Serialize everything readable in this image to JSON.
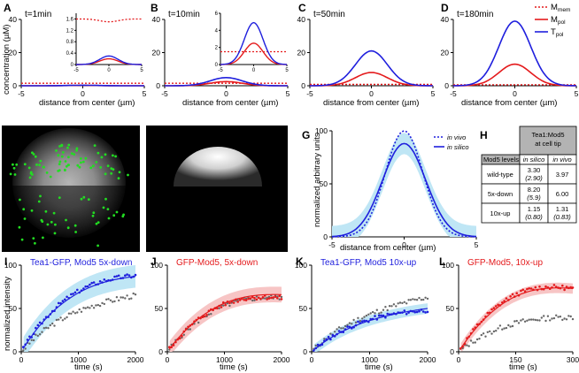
{
  "colors": {
    "red": "#e41a1c",
    "blue": "#1f1fdd",
    "lightblue": "#bfe6f5",
    "pink": "#f7c5c5",
    "gray": "#666666",
    "green": "#22dd22"
  },
  "labels": {
    "A": "A",
    "B": "B",
    "C": "C",
    "D": "D",
    "E": "E",
    "F": "F",
    "G": "G",
    "H": "H",
    "I": "I",
    "J": "J",
    "K": "K",
    "L": "L"
  },
  "top_row": {
    "ylabel": "concentration (µM)",
    "xlabel": "distance from center (µm)",
    "legend": [
      {
        "text": "M",
        "sub": "mem",
        "style": "dotted",
        "color": "#e41a1c"
      },
      {
        "text": "M",
        "sub": "pol",
        "style": "solid",
        "color": "#e41a1c"
      },
      {
        "text": "T",
        "sub": "pol",
        "style": "solid",
        "color": "#1f1fdd"
      }
    ],
    "insets": {
      "A": {
        "yticks": [
          "0",
          "0.4",
          "0.8",
          "1.2",
          "1.6"
        ],
        "xticks": [
          "-5",
          "0",
          "5"
        ]
      },
      "B": {
        "yticks": [
          "0",
          "2",
          "4",
          "6"
        ],
        "xticks": [
          "-5",
          "0",
          "5"
        ]
      }
    }
  },
  "panel_g": {
    "ylabel": "normalized arbitrary units",
    "xlabel": "distance from center (µm)",
    "legend": [
      "in vivo",
      "in silico"
    ]
  },
  "panel_h": {
    "header": "Tea1:Mod5 at cell tip",
    "col_label": "Mod5 levels",
    "col_insilico": "in silico",
    "col_invivo": "in vivo",
    "rows": [
      {
        "level": "wild-type",
        "silico": "3.30",
        "silico2": "(2.90)",
        "vivo": "3.97",
        "vivo2": ""
      },
      {
        "level": "5x-down",
        "silico": "8.20",
        "silico2": "(5.9)",
        "vivo": "6.00",
        "vivo2": ""
      },
      {
        "level": "10x-up",
        "silico": "1.15",
        "silico2": "(0.80)",
        "vivo": "1.31",
        "vivo2": "(0.83)"
      }
    ]
  },
  "bottom_row": {
    "ylabel": "normalized intensity",
    "xlabel": "time (s)"
  },
  "chart_data": [
    {
      "panel": "A",
      "type": "line",
      "title": "t=1min",
      "xlabel": "distance from center (µm)",
      "ylabel": "concentration (µM)",
      "xlim": [
        -5,
        5
      ],
      "ylim": [
        0,
        40
      ],
      "xticks": [
        -5,
        0,
        5
      ],
      "yticks": [
        0,
        20,
        40
      ],
      "series": [
        {
          "name": "Mmem",
          "x": [
            -5,
            0,
            5
          ],
          "values": [
            1.6,
            1.6,
            1.6
          ]
        },
        {
          "name": "Mpol",
          "x": [
            -5,
            0,
            5
          ],
          "values": [
            0,
            0.2,
            0
          ]
        },
        {
          "name": "Tpol",
          "x": [
            -5,
            0,
            5
          ],
          "values": [
            0,
            0.3,
            0
          ]
        }
      ]
    },
    {
      "panel": "B",
      "type": "line",
      "title": "t=10min",
      "xlabel": "distance from center (µm)",
      "ylabel": "",
      "xlim": [
        -5,
        5
      ],
      "ylim": [
        0,
        40
      ],
      "xticks": [
        -5,
        0,
        5
      ],
      "yticks": [
        0,
        20,
        40
      ],
      "series": [
        {
          "name": "Mmem",
          "x": [
            -5,
            0,
            5
          ],
          "values": [
            1.5,
            1.5,
            1.5
          ]
        },
        {
          "name": "Mpol",
          "x": [
            -5,
            0,
            5
          ],
          "values": [
            0,
            2.5,
            0
          ]
        },
        {
          "name": "Tpol",
          "x": [
            -5,
            0,
            5
          ],
          "values": [
            0,
            4.9,
            0
          ]
        }
      ]
    },
    {
      "panel": "C",
      "type": "line",
      "title": "t=50min",
      "xlabel": "distance from center (µm)",
      "ylabel": "",
      "xlim": [
        -5,
        5
      ],
      "ylim": [
        0,
        40
      ],
      "xticks": [
        -5,
        0,
        5
      ],
      "yticks": [
        0,
        20,
        40
      ],
      "series": [
        {
          "name": "Mmem",
          "x": [
            -5,
            0,
            5
          ],
          "values": [
            0.8,
            0.8,
            0.8
          ]
        },
        {
          "name": "Mpol",
          "x": [
            -5,
            0,
            5
          ],
          "values": [
            0,
            8,
            0
          ]
        },
        {
          "name": "Tpol",
          "x": [
            -5,
            0,
            5
          ],
          "values": [
            0,
            21,
            0
          ]
        }
      ]
    },
    {
      "panel": "D",
      "type": "line",
      "title": "t=180min",
      "xlabel": "distance from center (µm)",
      "ylabel": "",
      "xlim": [
        -5,
        5
      ],
      "ylim": [
        0,
        40
      ],
      "xticks": [
        -5,
        0,
        5
      ],
      "yticks": [
        0,
        20,
        40
      ],
      "series": [
        {
          "name": "Mmem",
          "x": [
            -5,
            0,
            5
          ],
          "values": [
            0.6,
            0.6,
            0.6
          ]
        },
        {
          "name": "Mpol",
          "x": [
            -5,
            0,
            5
          ],
          "values": [
            0,
            13,
            0
          ]
        },
        {
          "name": "Tpol",
          "x": [
            -5,
            0,
            5
          ],
          "values": [
            0,
            39,
            0
          ]
        }
      ]
    },
    {
      "panel": "G",
      "type": "line",
      "title": "",
      "xlabel": "distance from center (µm)",
      "ylabel": "normalized arbitrary units",
      "xlim": [
        -5,
        5
      ],
      "ylim": [
        0,
        100
      ],
      "xticks": [
        -5,
        0,
        5
      ],
      "yticks": [
        0,
        50,
        100
      ],
      "series": [
        {
          "name": "in vivo",
          "x": [
            -5,
            0,
            5
          ],
          "values": [
            0,
            100,
            0
          ]
        },
        {
          "name": "in silico",
          "x": [
            -5,
            0,
            5
          ],
          "values": [
            0,
            88,
            0
          ]
        }
      ]
    },
    {
      "panel": "I",
      "type": "scatter",
      "title": "Tea1-GFP, Mod5 5x-down",
      "xlabel": "time (s)",
      "ylabel": "normalized intensity",
      "xlim": [
        0,
        2000
      ],
      "ylim": [
        0,
        100
      ],
      "xticks": [
        0,
        1000,
        2000
      ],
      "yticks": [
        0,
        50,
        100
      ],
      "series": [
        {
          "name": "model",
          "x": [
            0,
            1000,
            2000
          ],
          "values": [
            0,
            68,
            87
          ]
        },
        {
          "name": "5x-down data",
          "x": [
            0,
            1000,
            2000
          ],
          "values": [
            0,
            70,
            88
          ]
        },
        {
          "name": "wild-type",
          "x": [
            0,
            1000,
            2000
          ],
          "values": [
            0,
            47,
            65
          ]
        }
      ]
    },
    {
      "panel": "J",
      "type": "scatter",
      "title": "GFP-Mod5, 5x-down",
      "xlabel": "time (s)",
      "ylabel": "",
      "xlim": [
        0,
        2000
      ],
      "ylim": [
        0,
        100
      ],
      "xticks": [
        0,
        1000,
        2000
      ],
      "yticks": [
        0,
        50,
        100
      ],
      "series": [
        {
          "name": "model",
          "x": [
            0,
            1000,
            2000
          ],
          "values": [
            0,
            56,
            66
          ]
        },
        {
          "name": "5x-down data",
          "x": [
            0,
            1000,
            2000
          ],
          "values": [
            0,
            55,
            62
          ]
        },
        {
          "name": "wild-type",
          "x": [
            0,
            1000,
            2000
          ],
          "values": [
            0,
            53,
            63
          ]
        }
      ]
    },
    {
      "panel": "K",
      "type": "scatter",
      "title": "Tea1-GFP, Mod5 10x-up",
      "xlabel": "time (s)",
      "ylabel": "",
      "xlim": [
        0,
        2000
      ],
      "ylim": [
        0,
        100
      ],
      "xticks": [
        0,
        1000,
        2000
      ],
      "yticks": [
        0,
        50,
        100
      ],
      "series": [
        {
          "name": "model",
          "x": [
            0,
            1000,
            2000
          ],
          "values": [
            0,
            36,
            50
          ]
        },
        {
          "name": "10x-up data",
          "x": [
            0,
            1000,
            2000
          ],
          "values": [
            0,
            37,
            48
          ]
        },
        {
          "name": "wild-type",
          "x": [
            0,
            1000,
            2000
          ],
          "values": [
            0,
            43,
            63
          ]
        }
      ]
    },
    {
      "panel": "L",
      "type": "scatter",
      "title": "GFP-Mod5, 10x-up",
      "xlabel": "time (s)",
      "ylabel": "",
      "xlim": [
        0,
        300
      ],
      "ylim": [
        0,
        100
      ],
      "xticks": [
        0,
        150,
        300
      ],
      "yticks": [
        0,
        50,
        100
      ],
      "series": [
        {
          "name": "model",
          "x": [
            0,
            150,
            300
          ],
          "values": [
            0,
            64,
            73
          ]
        },
        {
          "name": "10x-up data",
          "x": [
            0,
            150,
            300
          ],
          "values": [
            0,
            66,
            73
          ]
        },
        {
          "name": "wild-type",
          "x": [
            0,
            150,
            300
          ],
          "values": [
            0,
            33,
            40
          ]
        }
      ]
    }
  ]
}
